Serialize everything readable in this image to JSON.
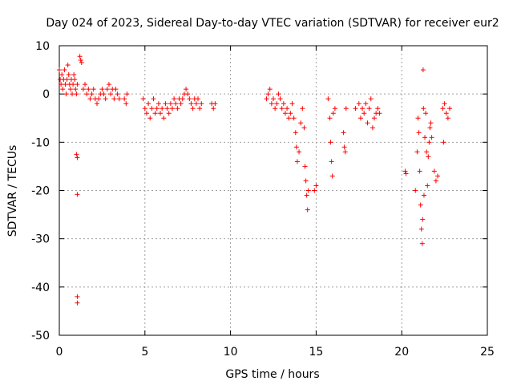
{
  "chart_data": {
    "type": "scatter",
    "title": "Day 024 of 2023, Sidereal Day-to-day VTEC variation (SDTVAR) for receiver eur2",
    "xlabel": "GPS time / hours",
    "ylabel": "SDTVAR / TECUs",
    "xlim": [
      0,
      25
    ],
    "ylim": [
      -50,
      10
    ],
    "xticks": [
      0,
      5,
      10,
      15,
      20,
      25
    ],
    "yticks": [
      10,
      0,
      -10,
      -20,
      -30,
      -40,
      -50
    ],
    "xtick_labels": [
      "0",
      "5",
      "10",
      "15",
      "20",
      "25"
    ],
    "ytick_labels": [
      "10",
      "0",
      "-10",
      "-20",
      "-30",
      "-40",
      "-50"
    ],
    "grid": true,
    "marker": "+",
    "color": "#ff0000",
    "series": [
      {
        "name": "SDTVAR",
        "points": [
          [
            0.0,
            5
          ],
          [
            0.05,
            3
          ],
          [
            0.1,
            2
          ],
          [
            0.15,
            4
          ],
          [
            0.2,
            1
          ],
          [
            0.25,
            3
          ],
          [
            0.3,
            5
          ],
          [
            0.35,
            2
          ],
          [
            0.4,
            0
          ],
          [
            0.45,
            3
          ],
          [
            0.5,
            6
          ],
          [
            0.55,
            4
          ],
          [
            0.6,
            2
          ],
          [
            0.65,
            1
          ],
          [
            0.7,
            3
          ],
          [
            0.75,
            0
          ],
          [
            0.8,
            2
          ],
          [
            0.85,
            4
          ],
          [
            0.9,
            3
          ],
          [
            0.95,
            1
          ],
          [
            1.0,
            0
          ],
          [
            1.05,
            2
          ],
          [
            1.0,
            -12.5
          ],
          [
            1.05,
            -13.2
          ],
          [
            1.05,
            -20.8
          ],
          [
            1.05,
            -42.0
          ],
          [
            1.05,
            -43.3
          ],
          [
            1.2,
            7.8
          ],
          [
            1.25,
            7.0
          ],
          [
            1.3,
            6.5
          ],
          [
            1.4,
            1
          ],
          [
            1.5,
            2
          ],
          [
            1.6,
            0
          ],
          [
            1.7,
            1
          ],
          [
            1.8,
            -1
          ],
          [
            1.9,
            0
          ],
          [
            2.0,
            1
          ],
          [
            2.1,
            -1
          ],
          [
            2.2,
            -2
          ],
          [
            2.3,
            -1
          ],
          [
            2.4,
            0
          ],
          [
            2.5,
            1
          ],
          [
            2.6,
            0
          ],
          [
            2.7,
            -1
          ],
          [
            2.8,
            1
          ],
          [
            2.9,
            2
          ],
          [
            3.0,
            0
          ],
          [
            3.1,
            1
          ],
          [
            3.2,
            -1
          ],
          [
            3.3,
            1
          ],
          [
            3.4,
            0
          ],
          [
            3.5,
            -1
          ],
          [
            3.8,
            -1
          ],
          [
            3.9,
            -2
          ],
          [
            3.95,
            0
          ],
          [
            4.9,
            -1
          ],
          [
            5.0,
            -3
          ],
          [
            5.1,
            -4
          ],
          [
            5.2,
            -2
          ],
          [
            5.3,
            -5
          ],
          [
            5.4,
            -3
          ],
          [
            5.5,
            -1
          ],
          [
            5.6,
            -4
          ],
          [
            5.7,
            -3
          ],
          [
            5.8,
            -2
          ],
          [
            5.9,
            -4
          ],
          [
            6.0,
            -3
          ],
          [
            6.1,
            -5
          ],
          [
            6.2,
            -2
          ],
          [
            6.3,
            -3
          ],
          [
            6.4,
            -4
          ],
          [
            6.5,
            -2
          ],
          [
            6.6,
            -3
          ],
          [
            6.7,
            -1
          ],
          [
            6.8,
            -2
          ],
          [
            6.9,
            -3
          ],
          [
            7.0,
            -1
          ],
          [
            7.1,
            -2
          ],
          [
            7.2,
            -1
          ],
          [
            7.3,
            0
          ],
          [
            7.4,
            1
          ],
          [
            7.5,
            0
          ],
          [
            7.6,
            -1
          ],
          [
            7.7,
            -2
          ],
          [
            7.8,
            -3
          ],
          [
            7.9,
            -1
          ],
          [
            8.0,
            -2
          ],
          [
            8.1,
            -1
          ],
          [
            8.2,
            -3
          ],
          [
            8.3,
            -2
          ],
          [
            8.9,
            -2
          ],
          [
            9.0,
            -3
          ],
          [
            9.1,
            -2
          ],
          [
            12.1,
            -1
          ],
          [
            12.2,
            0
          ],
          [
            12.3,
            1
          ],
          [
            12.4,
            -2
          ],
          [
            12.5,
            -1
          ],
          [
            12.6,
            -3
          ],
          [
            12.7,
            -2
          ],
          [
            12.8,
            0
          ],
          [
            12.9,
            -1
          ],
          [
            13.0,
            -3
          ],
          [
            13.1,
            -2
          ],
          [
            13.2,
            -4
          ],
          [
            13.3,
            -3
          ],
          [
            13.4,
            -5
          ],
          [
            13.5,
            -4
          ],
          [
            13.6,
            -2
          ],
          [
            13.7,
            -5
          ],
          [
            13.8,
            -8
          ],
          [
            13.85,
            -11
          ],
          [
            13.9,
            -14
          ],
          [
            14.0,
            -12
          ],
          [
            14.1,
            -6
          ],
          [
            14.2,
            -3
          ],
          [
            14.3,
            -7
          ],
          [
            14.35,
            -15
          ],
          [
            14.4,
            -18
          ],
          [
            14.45,
            -21
          ],
          [
            14.5,
            -24
          ],
          [
            14.55,
            -20
          ],
          [
            14.9,
            -20
          ],
          [
            15.0,
            -19
          ],
          [
            15.7,
            -1
          ],
          [
            15.8,
            -5
          ],
          [
            15.85,
            -10
          ],
          [
            15.9,
            -14
          ],
          [
            15.95,
            -17
          ],
          [
            16.0,
            -4
          ],
          [
            16.1,
            -3
          ],
          [
            16.6,
            -8
          ],
          [
            16.65,
            -11
          ],
          [
            16.7,
            -12
          ],
          [
            16.75,
            -3
          ],
          [
            17.3,
            -3
          ],
          [
            17.5,
            -2
          ],
          [
            17.6,
            -5
          ],
          [
            17.7,
            -3
          ],
          [
            17.8,
            -4
          ],
          [
            17.9,
            -2
          ],
          [
            18.0,
            -6
          ],
          [
            18.1,
            -3
          ],
          [
            18.2,
            -1
          ],
          [
            18.3,
            -7
          ],
          [
            18.4,
            -5
          ],
          [
            18.5,
            -4
          ],
          [
            18.6,
            -3
          ],
          [
            18.7,
            -4
          ],
          [
            20.2,
            -16
          ],
          [
            20.25,
            -16.5
          ],
          [
            20.8,
            -20
          ],
          [
            20.9,
            -12
          ],
          [
            20.95,
            -5
          ],
          [
            21.0,
            -8
          ],
          [
            21.05,
            -16
          ],
          [
            21.1,
            -23
          ],
          [
            21.15,
            -28
          ],
          [
            21.2,
            -31
          ],
          [
            21.22,
            -26
          ],
          [
            21.25,
            5
          ],
          [
            21.27,
            -3
          ],
          [
            21.3,
            -21
          ],
          [
            21.35,
            -9
          ],
          [
            21.4,
            -4
          ],
          [
            21.45,
            -12
          ],
          [
            21.5,
            -19
          ],
          [
            21.55,
            -13
          ],
          [
            21.6,
            -10
          ],
          [
            21.65,
            -7
          ],
          [
            21.7,
            -6
          ],
          [
            21.75,
            -9
          ],
          [
            21.9,
            -16
          ],
          [
            22.0,
            -18
          ],
          [
            22.1,
            -17
          ],
          [
            22.4,
            -3
          ],
          [
            22.45,
            -10
          ],
          [
            22.5,
            -2
          ],
          [
            22.6,
            -4
          ],
          [
            22.7,
            -5
          ],
          [
            22.8,
            -3
          ]
        ]
      }
    ]
  }
}
